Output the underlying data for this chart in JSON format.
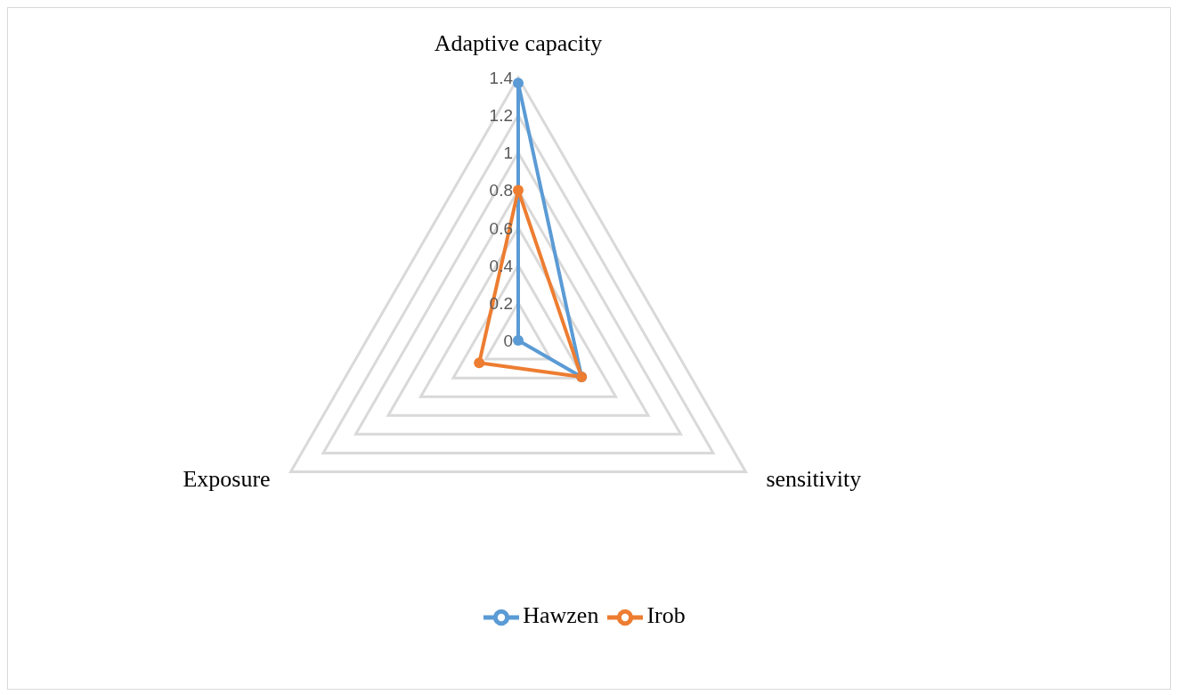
{
  "chart_data": {
    "type": "radar",
    "categories": [
      "Adaptive capacity",
      "sensitivity",
      "Exposure"
    ],
    "series": [
      {
        "name": "Hawzen",
        "color": "#5b9bd5",
        "values": [
          1.37,
          0.39,
          0
        ]
      },
      {
        "name": "Irob",
        "color": "#ed7d31",
        "values": [
          0.8,
          0.39,
          0.24
        ]
      }
    ],
    "ylim": [
      0,
      1.4
    ],
    "yticks": [
      0,
      0.2,
      0.4,
      0.6,
      0.8,
      1,
      1.2,
      1.4
    ],
    "grid": true,
    "legend": "bottom",
    "marker": "circle"
  }
}
